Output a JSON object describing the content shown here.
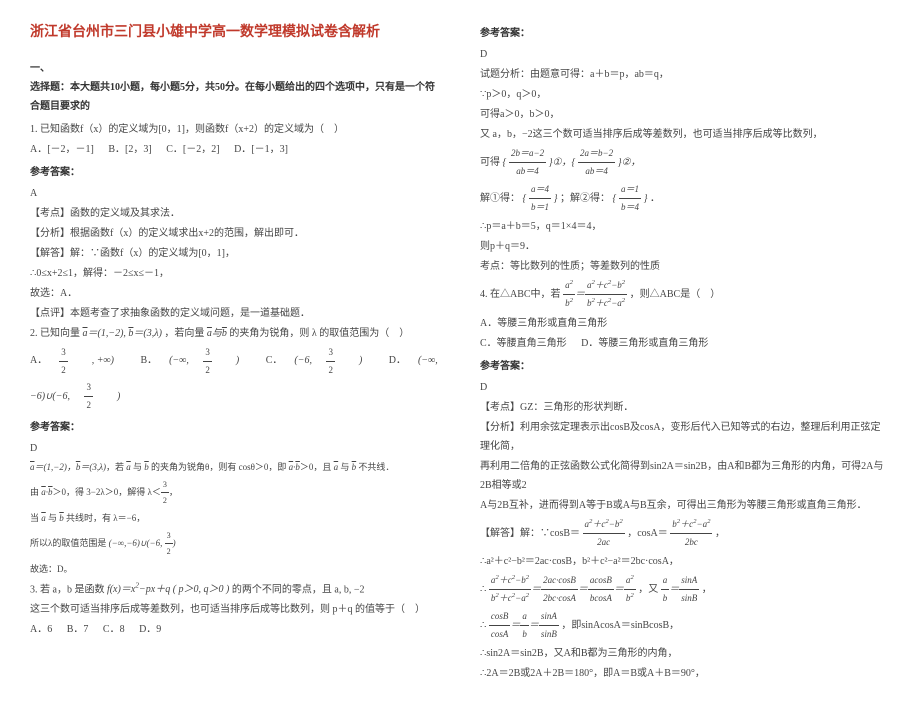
{
  "title": "浙江省台州市三门县小雄中学高一数学理模拟试卷含解析",
  "sec1_head1": "一、",
  "sec1_head2": "选择题：本大题共10小题，每小题5分，共50分。在每小题给出的四个选项中，只有是一个符合题目要求的",
  "q1": {
    "stem": "1. 已知函数f（x）的定义域为[0，1]，则函数f（x+2）的定义域为（　）",
    "optA": "A．[－2，－1]",
    "optB": "B．[2，3]",
    "optC": "C．[－2，2]",
    "optD": "D．[－1，3]",
    "ans_head": "参考答案：",
    "ans": "A",
    "kd": "【考点】函数的定义域及其求法．",
    "fx": "【分析】根据函数f（x）的定义域求出x+2的范围，解出即可．",
    "jd1": "【解答】解：∵函数f（x）的定义域为[0，1]，",
    "jd2": "∴0≤x+2≤1，解得：－2≤x≤－1，",
    "jd3": "故选：A．",
    "dp": "【点评】本题考查了求抽象函数的定义域问题，是一道基础题．"
  },
  "q2": {
    "stem_pre": "2. 已知向量",
    "veca": "a＝(1,−2), b＝(3,λ)",
    "stem_mid": "，若向量",
    "stem_post": "的夹角为锐角，则 λ 的取值范围为（　）",
    "optA_pref": "A．",
    "optA": "(3/2, +∞)",
    "optB_pref": "B．",
    "optB": "(−∞, 3/2)",
    "optC_pref": "C．",
    "optC": "(−6, 3/2)",
    "optD_pref": "D．",
    "optD": "(−∞, −6)∪(−6, 3/2)",
    "ans_head": "参考答案：",
    "ans": "D",
    "l1": "a＝(1,−2)，b＝(3,λ)，若 a 与 b 的夹角为锐角θ，则有 cosθ＞0，即 a·b＞0，且 a 与 b 不共线．",
    "l2": "由 a·b＞0，得 3−2λ＞0，解得 λ＜3/2，",
    "l3": "当 a 与 b 共线时，有 λ＝−6，",
    "l4_pre": "所以λ的取值范围是",
    "l4_expr": "(−∞, −6)∪(−6, 3/2)",
    "l5": "故选：D。"
  },
  "q3": {
    "stem_pre": "3. 若 a，b 是函数",
    "fx": "f(x)＝x²−px＋q ( p＞0, q＞0 )",
    "stem_post": "的两个不同的零点，且 a, b, −2",
    "l2": "这三个数可适当排序后成等差数列，也可适当排序后成等比数列，则 p＋q 的值等于（　）",
    "optA": "A．6",
    "optB": "B．7",
    "optC": "C．8",
    "optD": "D．9"
  },
  "right": {
    "ans_head": "参考答案：",
    "ans": "D",
    "l1": "试题分析：由题意可得：a＋b＝p，ab＝q，",
    "l2": "∵p＞0，q＞0，",
    "l3": "可得a＞0，b＞0，",
    "l4": "又 a，b，−2这三个数可适当排序后成等差数列，也可适当排序后成等比数列，",
    "l5_pre": "可得",
    "l5a": "{ 2b＝a−2，ab＝4 }①，{ 2a＝b−2，ab＝4 }②，",
    "l6_pre": "解①得：",
    "l6a": "{ a＝4，b＝1 }",
    "l6_mid": "；解②得：",
    "l6b": "{ a＝1，b＝4 }",
    "l6_post": "．",
    "l7": "∴p＝a＋b＝5，q＝1×4＝4，",
    "l8": "则p＋q＝9．",
    "l9": "考点：等比数列的性质；等差数列的性质"
  },
  "q4": {
    "stem_pre": "4. 在△ABC中，若",
    "expr": "a²/b² ＝ (a²＋c²−b²)/(b²＋c²−a²)",
    "stem_post": "，则△ABC是（　）",
    "optA": "A．等腰三角形或直角三角形",
    "optC": "C．等腰直角三角形",
    "optD": "D．等腰三角形或直角三角形",
    "ans_head": "参考答案：",
    "ans": "D",
    "kd": "【考点】GZ：三角形的形状判断．",
    "fx1": "【分析】利用余弦定理表示出cosB及cosA，变形后代入已知等式的右边，整理后利用正弦定理化简，",
    "fx2": "再利用二倍角的正弦函数公式化简得到sin2A＝sin2B，由A和B都为三角形的内角，可得2A与2B相等或2",
    "fx3": "A与2B互补，进而得到A等于B或A与B互余，可得出三角形为等腰三角形或直角三角形．",
    "jd1_pre": "【解答】解：∵cosB＝",
    "jd1_a": "(a²＋c²−b²)/2ac",
    "jd1_mid": "，cosA＝",
    "jd1_b": "(b²＋c²−a²)/2bc",
    "jd1_post": "，",
    "jd2": "∴a²＋c²−b²＝2ac·cosB，b²＋c²−a²＝2bc·cosA，",
    "jd3_pre": "∴",
    "jd3": "(a²＋c²−b²)/(b²＋c²−a²) ＝ 2ac·cosB/2bc·cosA ＝ a·cosB/b·cosA ＝ a²/b²",
    "jd3_post": "，又",
    "jd3b": "a/b ＝ sinA/sinB",
    "jd3c": "，",
    "jd4_pre": "∴",
    "jd4": "cosB/cosA ＝ a/b ＝ sinA/sinB",
    "jd4_post": "，即sinAcosA＝sinBcosB，",
    "jd5": "∴sin2A＝sin2B，又A和B都为三角形的内角，",
    "jd6": "∴2A＝2B或2A＋2B＝180°，即A＝B或A＋B＝90°，"
  }
}
